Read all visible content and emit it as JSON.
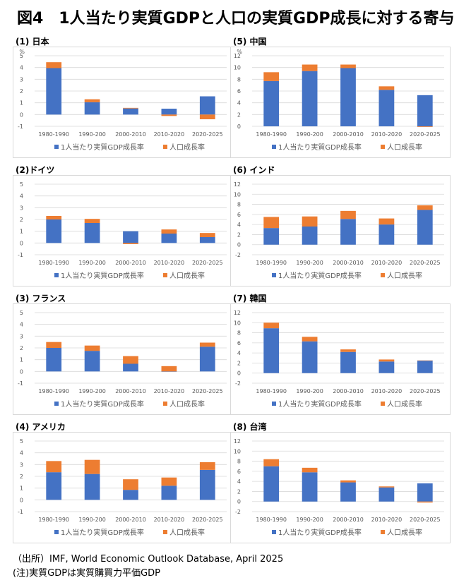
{
  "title": "図4　1人当たり実質GDPと人口の実質GDP成長に対する寄与",
  "colors": {
    "per_capita": "#4472C4",
    "population": "#ED7D31",
    "grid": "#d9d9d9"
  },
  "legend": {
    "per_capita": "1人当たり実質GDP成長率",
    "population": "人口成長率"
  },
  "footnotes": {
    "source": "（出所）IMF, World Economic Outlook Database, April 2025",
    "note": "(注)実質GDPは実質購買力平価GDP"
  },
  "chart_data": [
    {
      "id": "japan",
      "label": "(1) 日本",
      "type": "bar",
      "stacked": true,
      "unit": "%",
      "categories": [
        "1980-1990",
        "1990-200",
        "2000-2010",
        "2010-2020",
        "2020-2025"
      ],
      "ylim": [
        -1,
        5
      ],
      "yticks": [
        -1,
        0,
        1,
        2,
        3,
        4,
        5
      ],
      "series": [
        {
          "name": "1人当たり実質GDP成長率",
          "values": [
            3.95,
            1.05,
            0.52,
            0.5,
            1.55
          ]
        },
        {
          "name": "人口成長率",
          "values": [
            0.5,
            0.25,
            0.05,
            -0.12,
            -0.4
          ]
        }
      ]
    },
    {
      "id": "china",
      "label": "(5) 中国",
      "type": "bar",
      "stacked": true,
      "unit": "%",
      "categories": [
        "1980-1990",
        "1990-200",
        "2000-2010",
        "2010-2020",
        "2020-2025"
      ],
      "ylim": [
        0,
        12
      ],
      "yticks": [
        0,
        2,
        4,
        6,
        8,
        10,
        12
      ],
      "series": [
        {
          "name": "1人当たり実質GDP成長率",
          "values": [
            7.7,
            9.4,
            9.9,
            6.2,
            5.3
          ]
        },
        {
          "name": "人口成長率",
          "values": [
            1.5,
            1.1,
            0.6,
            0.6,
            -0.1
          ]
        }
      ]
    },
    {
      "id": "germany",
      "label": "(2)ドイツ",
      "type": "bar",
      "stacked": true,
      "unit": "",
      "categories": [
        "1980-1990",
        "1990-200",
        "2000-2010",
        "2010-2020",
        "2020-2025"
      ],
      "ylim": [
        -1,
        5
      ],
      "yticks": [
        -1,
        0,
        1,
        2,
        3,
        4,
        5
      ],
      "series": [
        {
          "name": "1人当たり実質GDP成長率",
          "values": [
            2.0,
            1.7,
            1.0,
            0.8,
            0.5
          ]
        },
        {
          "name": "人口成長率",
          "values": [
            0.3,
            0.35,
            -0.1,
            0.35,
            0.35
          ]
        }
      ]
    },
    {
      "id": "india",
      "label": "(6) インド",
      "type": "bar",
      "stacked": true,
      "unit": "",
      "categories": [
        "1980-1990",
        "1990-200",
        "2000-2010",
        "2010-2020",
        "2020-2025"
      ],
      "ylim": [
        -2,
        12
      ],
      "yticks": [
        -2,
        0,
        2,
        4,
        6,
        8,
        10,
        12
      ],
      "series": [
        {
          "name": "1人当たり実質GDP成長率",
          "values": [
            3.3,
            3.6,
            5.1,
            4.0,
            6.9
          ]
        },
        {
          "name": "人口成長率",
          "values": [
            2.2,
            2.0,
            1.6,
            1.2,
            0.9
          ]
        }
      ]
    },
    {
      "id": "france",
      "label": "(3) フランス",
      "type": "bar",
      "stacked": true,
      "unit": "",
      "categories": [
        "1980-1990",
        "1990-200",
        "2000-2010",
        "2010-2020",
        "2020-2025"
      ],
      "ylim": [
        -1,
        5
      ],
      "yticks": [
        -1,
        0,
        1,
        2,
        3,
        4,
        5
      ],
      "series": [
        {
          "name": "1人当たり実質GDP成長率",
          "values": [
            2.0,
            1.75,
            0.65,
            0.0,
            2.1
          ]
        },
        {
          "name": "人口成長率",
          "values": [
            0.5,
            0.45,
            0.65,
            0.45,
            0.35
          ]
        }
      ]
    },
    {
      "id": "korea",
      "label": "(7) 韓国",
      "type": "bar",
      "stacked": true,
      "unit": "",
      "categories": [
        "1980-1990",
        "1990-200",
        "2000-2010",
        "2010-2020",
        "2020-2025"
      ],
      "ylim": [
        -2,
        12
      ],
      "yticks": [
        -2,
        0,
        2,
        4,
        6,
        8,
        10,
        12
      ],
      "series": [
        {
          "name": "1人当たり実質GDP成長率",
          "values": [
            8.9,
            6.3,
            4.2,
            2.3,
            2.5
          ]
        },
        {
          "name": "人口成長率",
          "values": [
            1.1,
            0.9,
            0.5,
            0.4,
            0.0
          ]
        }
      ]
    },
    {
      "id": "usa",
      "label": "(4) アメリカ",
      "type": "bar",
      "stacked": true,
      "unit": "",
      "categories": [
        "1980-1990",
        "1990-200",
        "2000-2010",
        "2010-2020",
        "2020-2025"
      ],
      "ylim": [
        -1,
        5
      ],
      "yticks": [
        -1,
        0,
        1,
        2,
        3,
        4,
        5
      ],
      "series": [
        {
          "name": "1人当たり実質GDP成長率",
          "values": [
            2.35,
            2.2,
            0.85,
            1.2,
            2.55
          ]
        },
        {
          "name": "人口成長率",
          "values": [
            0.95,
            1.2,
            0.9,
            0.7,
            0.65
          ]
        }
      ]
    },
    {
      "id": "taiwan",
      "label": "(8) 台湾",
      "type": "bar",
      "stacked": true,
      "unit": "",
      "categories": [
        "1980-1990",
        "1990-200",
        "2000-2010",
        "2010-2020",
        "2020-2025"
      ],
      "ylim": [
        -2,
        12
      ],
      "yticks": [
        -2,
        0,
        2,
        4,
        6,
        8,
        10,
        12
      ],
      "series": [
        {
          "name": "1人当たり実質GDP成長率",
          "values": [
            7.0,
            5.8,
            3.8,
            2.8,
            3.6
          ]
        },
        {
          "name": "人口成長率",
          "values": [
            1.4,
            0.9,
            0.4,
            0.2,
            -0.2
          ]
        }
      ]
    }
  ]
}
